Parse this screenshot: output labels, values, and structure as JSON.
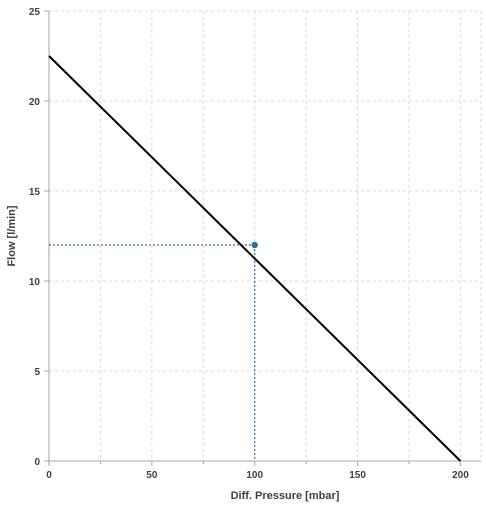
{
  "chart_data": {
    "type": "line",
    "title": "",
    "xlabel": "Diff. Pressure [mbar]",
    "ylabel": "Flow [l/min]",
    "xlim": [
      0,
      210
    ],
    "ylim": [
      0,
      25
    ],
    "x_major_ticks": [
      0,
      50,
      100,
      150,
      200
    ],
    "x_minor_ticks": [
      25,
      75,
      125,
      175
    ],
    "y_ticks": [
      0,
      5,
      10,
      15,
      20,
      25
    ],
    "grid": true,
    "legend": "none",
    "series": [
      {
        "x": [
          0,
          200
        ],
        "y": [
          22.5,
          0
        ],
        "color": "#000000"
      }
    ],
    "annotations": [
      {
        "type": "point-with-guides",
        "x": 100,
        "y": 12,
        "color": "#2e75b6"
      }
    ]
  }
}
